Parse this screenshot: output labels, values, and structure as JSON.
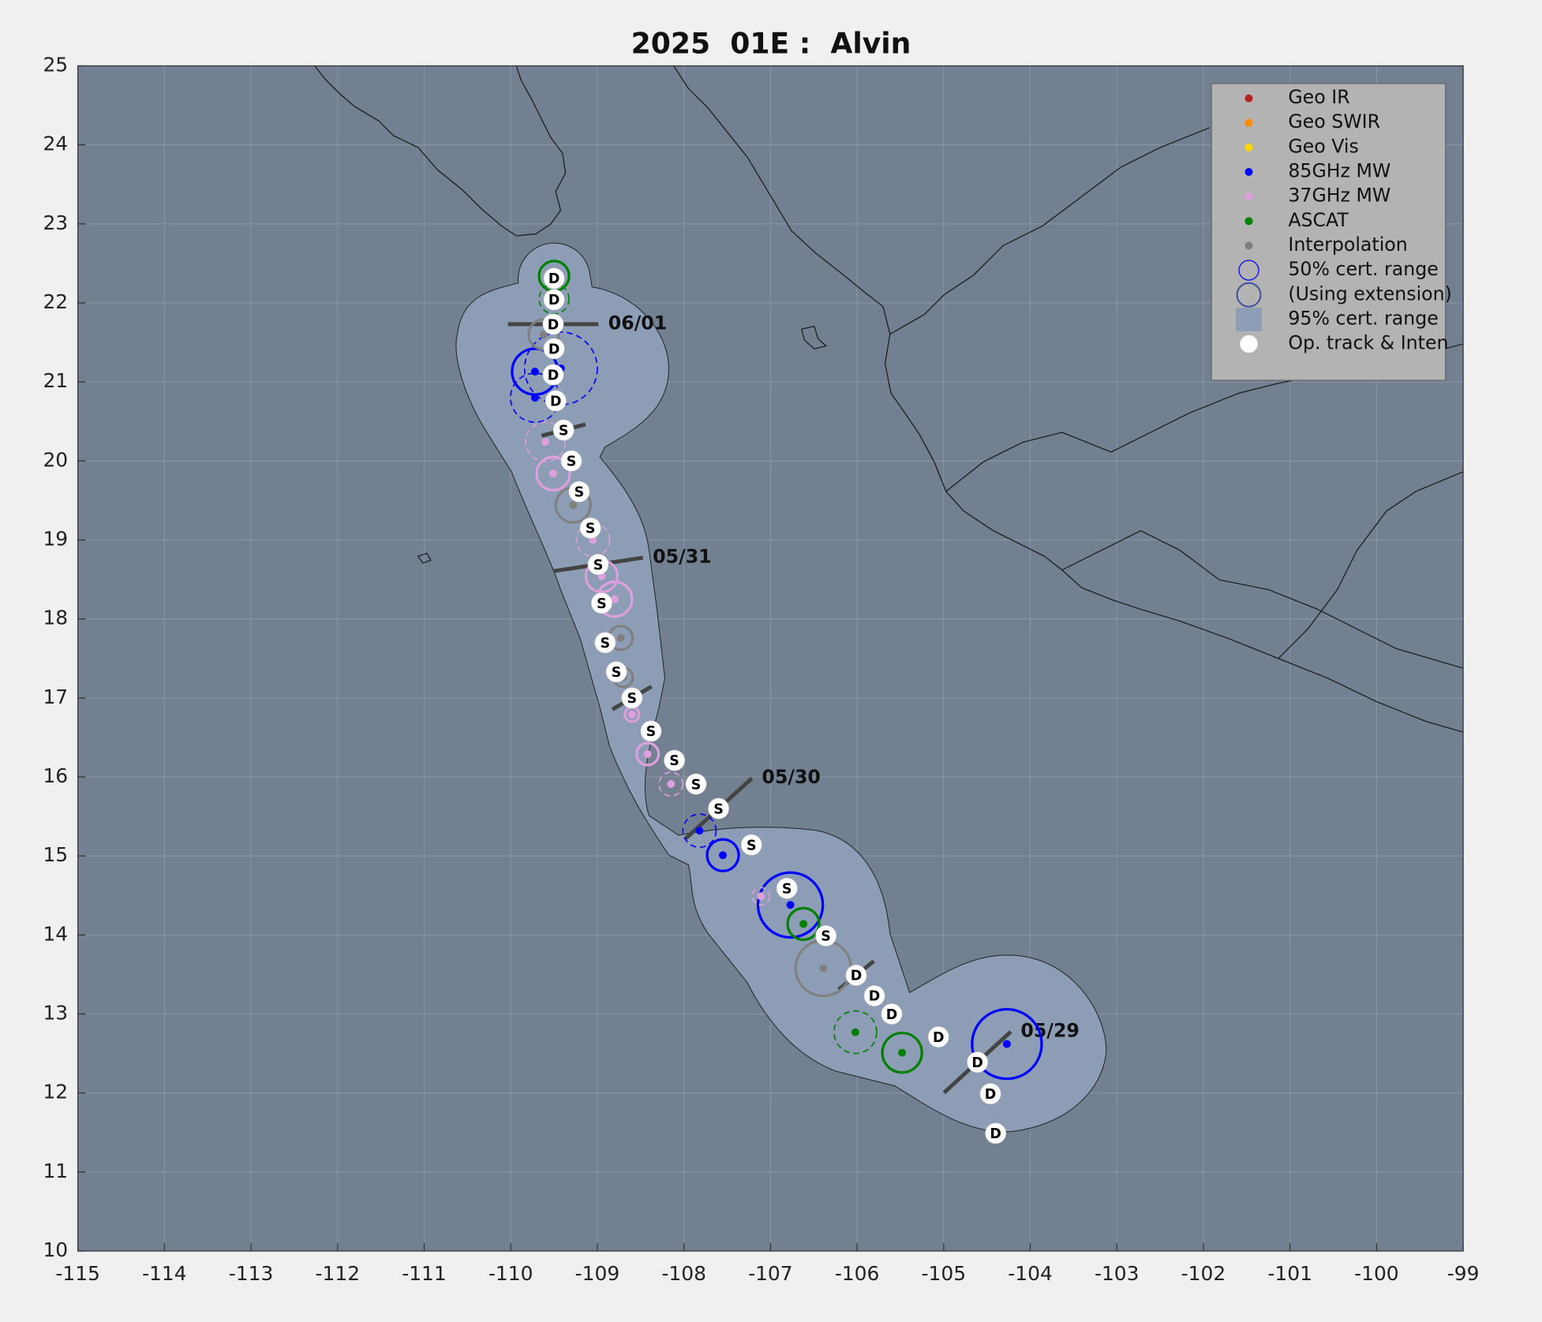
{
  "chart_data": {
    "type": "scatter",
    "title": "2025  01E :  Alvin",
    "xlim": [
      -115,
      -99
    ],
    "ylim": [
      10,
      25
    ],
    "xticks": [
      -115,
      -114,
      -113,
      -112,
      -111,
      -110,
      -109,
      -108,
      -107,
      -106,
      -105,
      -104,
      -103,
      -102,
      -101,
      -100,
      -99
    ],
    "yticks": [
      10,
      11,
      12,
      13,
      14,
      15,
      16,
      17,
      18,
      19,
      20,
      21,
      22,
      23,
      24,
      25
    ],
    "grid": true,
    "legend": "upper right",
    "series": [
      {
        "name": "Geo IR",
        "color": "#b22222",
        "x": [],
        "y": [],
        "radius": [],
        "dashed": []
      },
      {
        "name": "Geo SWIR",
        "color": "#ff8c00",
        "x": [],
        "y": [],
        "radius": [],
        "dashed": []
      },
      {
        "name": "Geo Vis",
        "color": "#ffd700",
        "x": [],
        "y": [],
        "radius": [],
        "dashed": []
      },
      {
        "name": "85GHz MW",
        "color": "#0000ff",
        "x": [
          -104.27,
          -106.77,
          -107.55,
          -107.82,
          -109.72,
          -109.72,
          -109.42
        ],
        "y": [
          12.62,
          14.38,
          15.01,
          15.32,
          20.8,
          21.13,
          21.17
        ],
        "radius": [
          0.44,
          0.41,
          0.2,
          0.21,
          0.31,
          0.29,
          0.46
        ],
        "dashed": [
          false,
          false,
          false,
          true,
          true,
          false,
          true
        ]
      },
      {
        "name": "37GHz MW",
        "color": "#dda0dd",
        "x": [
          -107.11,
          -108.15,
          -108.42,
          -108.6,
          -108.8,
          -108.95,
          -109.05,
          -109.51,
          -109.6
        ],
        "y": [
          14.49,
          15.91,
          16.29,
          16.79,
          18.25,
          18.54,
          19.0,
          19.84,
          20.24
        ],
        "radius": [
          0.11,
          0.15,
          0.14,
          0.09,
          0.22,
          0.2,
          0.21,
          0.21,
          0.25
        ],
        "dashed": [
          true,
          true,
          false,
          false,
          false,
          false,
          true,
          false,
          true
        ]
      },
      {
        "name": "ASCAT",
        "color": "#008000",
        "x": [
          -105.48,
          -106.02,
          -106.62,
          -109.5,
          -109.5
        ],
        "y": [
          12.51,
          12.77,
          14.14,
          22.05,
          22.34
        ],
        "radius": [
          0.25,
          0.27,
          0.2,
          0.19,
          0.19
        ],
        "dashed": [
          false,
          true,
          false,
          true,
          false
        ]
      },
      {
        "name": "Interpolation",
        "color": "#808080",
        "x": [
          -106.39,
          -108.7,
          -108.73,
          -109.28,
          -109.62
        ],
        "y": [
          13.58,
          17.26,
          17.76,
          19.44,
          21.6
        ],
        "radius": [
          0.35,
          0.12,
          0.15,
          0.22,
          0.19
        ],
        "dashed": [
          false,
          false,
          false,
          false,
          false
        ]
      }
    ],
    "legend_extra": [
      {
        "name": "50% cert. range",
        "color": "#0000ff",
        "symbol": "ring"
      },
      {
        "name": "(Using extension)",
        "color": "#3a4a9a",
        "symbol": "ring-large"
      },
      {
        "name": "95% cert. range",
        "color": "#8d9db5",
        "symbol": "square"
      }
    ],
    "track": {
      "name": "Op. track & Inten",
      "color": "#ffffff",
      "x": [
        -104.4,
        -104.46,
        -104.61,
        -105.06,
        -105.6,
        -105.8,
        -106.01,
        -106.36,
        -106.81,
        -107.22,
        -107.6,
        -107.86,
        -108.11,
        -108.38,
        -108.6,
        -108.78,
        -108.91,
        -108.95,
        -108.99,
        -109.08,
        -109.21,
        -109.3,
        -109.39,
        -109.48,
        -109.51,
        -109.5,
        -109.51,
        -109.5,
        -109.5
      ],
      "y": [
        11.49,
        11.99,
        12.39,
        12.71,
        13.0,
        13.23,
        13.49,
        13.99,
        14.59,
        15.14,
        15.6,
        15.91,
        16.21,
        16.58,
        17.0,
        17.33,
        17.7,
        18.2,
        18.69,
        19.15,
        19.61,
        20.0,
        20.39,
        20.76,
        21.09,
        21.42,
        21.73,
        22.04,
        22.31
      ],
      "labels": [
        "D",
        "D",
        "D",
        "D",
        "D",
        "D",
        "D",
        "S",
        "S",
        "S",
        "S",
        "S",
        "S",
        "S",
        "S",
        "S",
        "S",
        "S",
        "S",
        "S",
        "S",
        "S",
        "S",
        "D",
        "D",
        "D",
        "D",
        "D",
        "D"
      ]
    },
    "date_marks": {
      "x": [
        -104.61,
        -107.6,
        -108.99,
        -109.51,
        -109.39,
        -108.6,
        -106.01
      ],
      "y": [
        12.39,
        15.6,
        18.69,
        21.73,
        20.39,
        17.0,
        13.49
      ],
      "labels": [
        "05/29",
        "05/30",
        "05/31",
        "06/01",
        null,
        null,
        null
      ]
    }
  }
}
